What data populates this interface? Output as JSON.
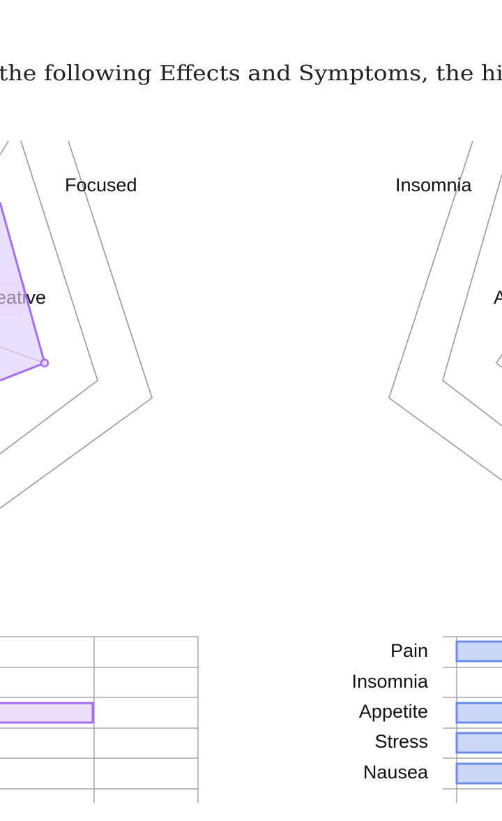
{
  "title": "the following Effects and Symptoms, the hi",
  "effects_radar": {
    "labels": [
      "Focused",
      "Creative"
    ]
  },
  "symptoms_radar": {
    "labels": [
      "Insomnia",
      "Appetite"
    ]
  },
  "symptoms_bars": {
    "labels": [
      "Pain",
      "Insomnia",
      "Appetite",
      "Stress",
      "Nausea"
    ]
  }
}
